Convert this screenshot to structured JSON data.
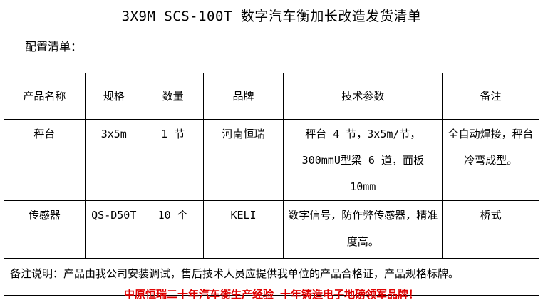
{
  "title": "3X9M SCS-100T 数字汽车衡加长改造发货清单",
  "subtitle": "配置清单：",
  "table": {
    "headers": [
      "产品名称",
      "规格",
      "数量",
      "品牌",
      "技术参数",
      "备注"
    ],
    "rows": [
      [
        "秤台",
        "3x5m",
        "1 节",
        "河南恒瑞",
        "秤台 4 节，3x5m/节，300mmU型梁 6 道，面板 10mm",
        "全自动焊接，秤台冷弯成型。"
      ],
      [
        "传感器",
        "QS-D50T",
        "10 个",
        "KELI",
        "数字信号，防作弊传感器，精准度高。",
        "桥式"
      ]
    ],
    "note": "备注说明：产品由我公司安装调试，售后技术人员应提供我单位的产品合格证，产品规格标牌。"
  },
  "footer": "中原恒瑞二十年汽车衡生产经验 十年铸造电子地磅领军品牌！"
}
